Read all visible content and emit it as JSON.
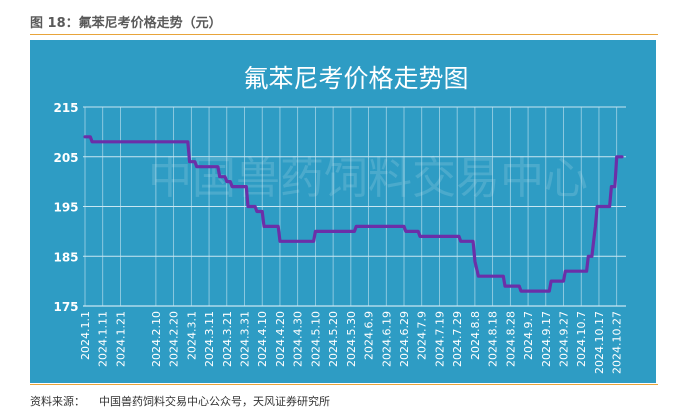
{
  "figure": {
    "caption": "图 18：氟苯尼考价格走势（元）",
    "source": "资料来源：    中国兽药饲料交易中心公众号，天风证券研究所"
  },
  "watermark": "中国兽药饲料交易中心",
  "colors": {
    "panel": "#2e9cc4",
    "line": "#6b2fa8",
    "grid": "#c8e6f2",
    "text": "#ffffff",
    "accent_rule": "#e8a43a"
  },
  "chart_data": {
    "type": "line",
    "title": "氟苯尼考价格走势图",
    "xlabel": "",
    "ylabel": "",
    "ylim": [
      175,
      215
    ],
    "yticks": [
      175,
      185,
      195,
      205,
      215
    ],
    "grid": true,
    "legend": "none",
    "x_ticks": [
      "2024.1.1",
      "2024.1.11",
      "2024.1.21",
      "2024.2.10",
      "2024.2.20",
      "2024.3.1",
      "2024.3.11",
      "2024.3.21",
      "2024.3.31",
      "2024.4.10",
      "2024.4.20",
      "2024.4.30",
      "2024.5.10",
      "2024.5.20",
      "2024.5.30",
      "2024.6.9",
      "2024.6.19",
      "2024.6.29",
      "2024.7.9",
      "2024.7.19",
      "2024.7.29",
      "2024.8.8",
      "2024.8.18",
      "2024.8.28",
      "2024.9.7",
      "2024.9.17",
      "2024.9.27",
      "2024.10.7",
      "2024.10.17",
      "2024.10.27"
    ],
    "series": [
      {
        "name": "",
        "points": [
          [
            "2024.1.1",
            209
          ],
          [
            "2024.1.4",
            209
          ],
          [
            "2024.1.5",
            208
          ],
          [
            "2024.2.28",
            208
          ],
          [
            "2024.2.29",
            204
          ],
          [
            "2024.3.3",
            204
          ],
          [
            "2024.3.4",
            203
          ],
          [
            "2024.3.16",
            203
          ],
          [
            "2024.3.17",
            201
          ],
          [
            "2024.3.20",
            201
          ],
          [
            "2024.3.21",
            200
          ],
          [
            "2024.3.23",
            200
          ],
          [
            "2024.3.24",
            199
          ],
          [
            "2024.4.1",
            199
          ],
          [
            "2024.4.2",
            195
          ],
          [
            "2024.4.6",
            195
          ],
          [
            "2024.4.7",
            194
          ],
          [
            "2024.4.10",
            194
          ],
          [
            "2024.4.11",
            191
          ],
          [
            "2024.4.19",
            191
          ],
          [
            "2024.4.20",
            188
          ],
          [
            "2024.5.9",
            188
          ],
          [
            "2024.5.10",
            190
          ],
          [
            "2024.6.1",
            190
          ],
          [
            "2024.6.2",
            191
          ],
          [
            "2024.6.29",
            191
          ],
          [
            "2024.6.30",
            190
          ],
          [
            "2024.7.7",
            190
          ],
          [
            "2024.7.8",
            189
          ],
          [
            "2024.7.30",
            189
          ],
          [
            "2024.7.31",
            188
          ],
          [
            "2024.8.7",
            188
          ],
          [
            "2024.8.8",
            184
          ],
          [
            "2024.8.10",
            181
          ],
          [
            "2024.8.24",
            181
          ],
          [
            "2024.8.25",
            179
          ],
          [
            "2024.9.2",
            179
          ],
          [
            "2024.9.3",
            178
          ],
          [
            "2024.9.19",
            178
          ],
          [
            "2024.9.20",
            180
          ],
          [
            "2024.9.27",
            180
          ],
          [
            "2024.9.28",
            182
          ],
          [
            "2024.10.10",
            182
          ],
          [
            "2024.10.11",
            185
          ],
          [
            "2024.10.13",
            185
          ],
          [
            "2024.10.14",
            188
          ],
          [
            "2024.10.15",
            191
          ],
          [
            "2024.10.16",
            195
          ],
          [
            "2024.10.23",
            195
          ],
          [
            "2024.10.24",
            199
          ],
          [
            "2024.10.26",
            199
          ],
          [
            "2024.10.27",
            205
          ],
          [
            "2024.10.30",
            205
          ]
        ]
      }
    ]
  }
}
